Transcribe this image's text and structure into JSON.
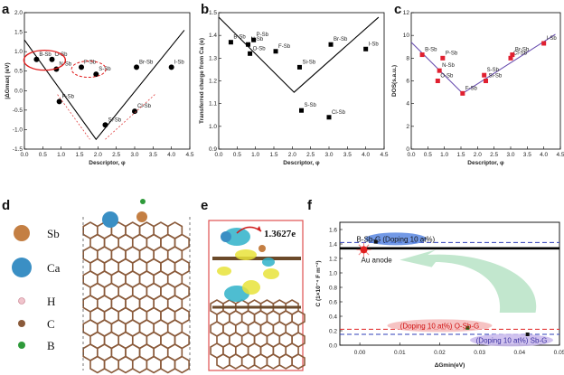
{
  "chart_data": [
    {
      "panel": "a",
      "type": "scatter",
      "xlabel": "Descriptor, φ",
      "ylabel": "|ΔGmax| (eV)",
      "xlim": [
        0,
        4.5
      ],
      "ylim": [
        2.0,
        -1.5
      ],
      "xticks": [
        "0.0",
        "0.5",
        "1.0",
        "1.5",
        "2.0",
        "2.5",
        "3.0",
        "3.5",
        "4.0",
        "4.5"
      ],
      "yticks": [
        "-1.5",
        "-1.0",
        "-0.5",
        "0.0",
        "0.5",
        "1.0",
        "1.5",
        "2.0"
      ],
      "points": [
        {
          "label": "B-Sb",
          "x": 0.33,
          "y": -0.3
        },
        {
          "label": "O-Sb",
          "x": 0.75,
          "y": -0.3
        },
        {
          "label": "N-Sb",
          "x": 0.87,
          "y": -0.05
        },
        {
          "label": "P-Sb",
          "x": 0.95,
          "y": 0.78
        },
        {
          "label": "F-Sb",
          "x": 1.55,
          "y": -0.1
        },
        {
          "label": "S-Sb",
          "x": 1.95,
          "y": 0.08
        },
        {
          "label": "Si-Sb",
          "x": 2.2,
          "y": 1.38
        },
        {
          "label": "Cl-Sb",
          "x": 3.0,
          "y": 1.03
        },
        {
          "label": "Br-Sb",
          "x": 3.05,
          "y": -0.1
        },
        {
          "label": "I-Sb",
          "x": 4.0,
          "y": -0.1
        }
      ],
      "fit_line": [
        [
          0.0,
          -0.8
        ],
        [
          1.95,
          1.75
        ],
        [
          4.35,
          -1.05
        ]
      ]
    },
    {
      "panel": "b",
      "type": "scatter",
      "xlabel": "Descriptor, φ",
      "ylabel": "Transferred charge from Ca (e)",
      "xlim": [
        0,
        4.5
      ],
      "ylim": [
        0.9,
        1.5
      ],
      "xticks": [
        "0.0",
        "0.5",
        "1.0",
        "1.5",
        "2.0",
        "2.5",
        "3.0",
        "3.5",
        "4.0",
        "4.5"
      ],
      "yticks": [
        "0.9",
        "1.0",
        "1.1",
        "1.2",
        "1.3",
        "1.4",
        "1.5"
      ],
      "points": [
        {
          "label": "B-Sb",
          "x": 0.33,
          "y": 1.37
        },
        {
          "label": "N-Sb",
          "x": 0.8,
          "y": 1.36
        },
        {
          "label": "O-Sb",
          "x": 0.85,
          "y": 1.32
        },
        {
          "label": "P-Sb",
          "x": 0.95,
          "y": 1.38
        },
        {
          "label": "F-Sb",
          "x": 1.55,
          "y": 1.33
        },
        {
          "label": "Si-Sb",
          "x": 2.2,
          "y": 1.26
        },
        {
          "label": "S-Sb",
          "x": 2.25,
          "y": 1.07
        },
        {
          "label": "Br-Sb",
          "x": 3.05,
          "y": 1.36
        },
        {
          "label": "Cl-Sb",
          "x": 3.0,
          "y": 1.04
        },
        {
          "label": "I-Sb",
          "x": 4.0,
          "y": 1.34
        }
      ],
      "fit_line": [
        [
          0.0,
          1.48
        ],
        [
          2.05,
          1.15
        ],
        [
          4.35,
          1.48
        ]
      ]
    },
    {
      "panel": "c",
      "type": "scatter",
      "xlabel": "Descriptor, φ",
      "ylabel": "DOS(s.a.u.)",
      "xlim": [
        0,
        4.5
      ],
      "ylim": [
        0,
        12
      ],
      "xticks": [
        "0.0",
        "0.5",
        "1.0",
        "1.5",
        "2.0",
        "2.5",
        "3.0",
        "3.5",
        "4.0",
        "4.5"
      ],
      "yticks": [
        "0",
        "2",
        "4",
        "6",
        "8",
        "10",
        "12"
      ],
      "points": [
        {
          "label": "B-Sb",
          "x": 0.33,
          "y": 8.3
        },
        {
          "label": "P-Sb",
          "x": 0.95,
          "y": 8.0
        },
        {
          "label": "N-Sb",
          "x": 0.85,
          "y": 6.9
        },
        {
          "label": "O-Sb",
          "x": 0.8,
          "y": 6.0
        },
        {
          "label": "F-Sb",
          "x": 1.55,
          "y": 4.9
        },
        {
          "label": "S-Sb",
          "x": 2.2,
          "y": 6.5
        },
        {
          "label": "Si-Sb",
          "x": 2.25,
          "y": 6.0
        },
        {
          "label": "Cl-Sb",
          "x": 3.0,
          "y": 8.0
        },
        {
          "label": "Br-Sb",
          "x": 3.05,
          "y": 8.3
        },
        {
          "label": "I-Sb",
          "x": 4.0,
          "y": 9.3
        }
      ],
      "fit_line": [
        [
          0.0,
          9.4
        ],
        [
          1.55,
          4.9
        ],
        [
          4.35,
          10.1
        ]
      ]
    },
    {
      "panel": "f",
      "type": "scatter",
      "xlabel": "ΔGmin(eV)",
      "ylabel": "C (1×10⁻⁴ F m⁻²)",
      "xlim": [
        -0.005,
        0.05
      ],
      "ylim": [
        0.0,
        1.7
      ],
      "xticks": [
        "0.00",
        "0.01",
        "0.02",
        "0.03",
        "0.04",
        "0.05"
      ],
      "yticks": [
        "0.0",
        "0.2",
        "0.4",
        "0.6",
        "0.8",
        "1.0",
        "1.2",
        "1.4",
        "1.6"
      ],
      "hlines": [
        {
          "y": 1.34,
          "color": "#000000",
          "style": "solid"
        },
        {
          "y": 1.42,
          "color": "#2f3fb8",
          "style": "dashed"
        },
        {
          "y": 0.22,
          "color": "#e02020",
          "style": "dashed"
        },
        {
          "y": 0.15,
          "color": "#2f3fb8",
          "style": "dashed"
        }
      ],
      "points": [
        {
          "label": "B-Sb-G (Doping 10 at%)",
          "x": 0.004,
          "y": 1.43
        },
        {
          "label": "Au anode",
          "x": 0.001,
          "y": 1.32
        },
        {
          "label": "(Doping 10 at%) O-Sb-G",
          "x": 0.027,
          "y": 0.24
        },
        {
          "label": "(Doping 10 at%) Sb-G",
          "x": 0.042,
          "y": 0.15
        }
      ]
    }
  ],
  "panels": {
    "a": "a",
    "b": "b",
    "c": "c",
    "d": "d",
    "e": "e",
    "f": "f"
  },
  "legend_d": [
    {
      "symbol": "Sb",
      "color": "#c47f43"
    },
    {
      "symbol": "Ca",
      "color": "#3a8fc4"
    },
    {
      "symbol": "H",
      "color": "#f0c4cc"
    },
    {
      "symbol": "C",
      "color": "#8a5a3a"
    },
    {
      "symbol": "B",
      "color": "#2e9a3a"
    }
  ],
  "annotation_e": "1.3627e"
}
